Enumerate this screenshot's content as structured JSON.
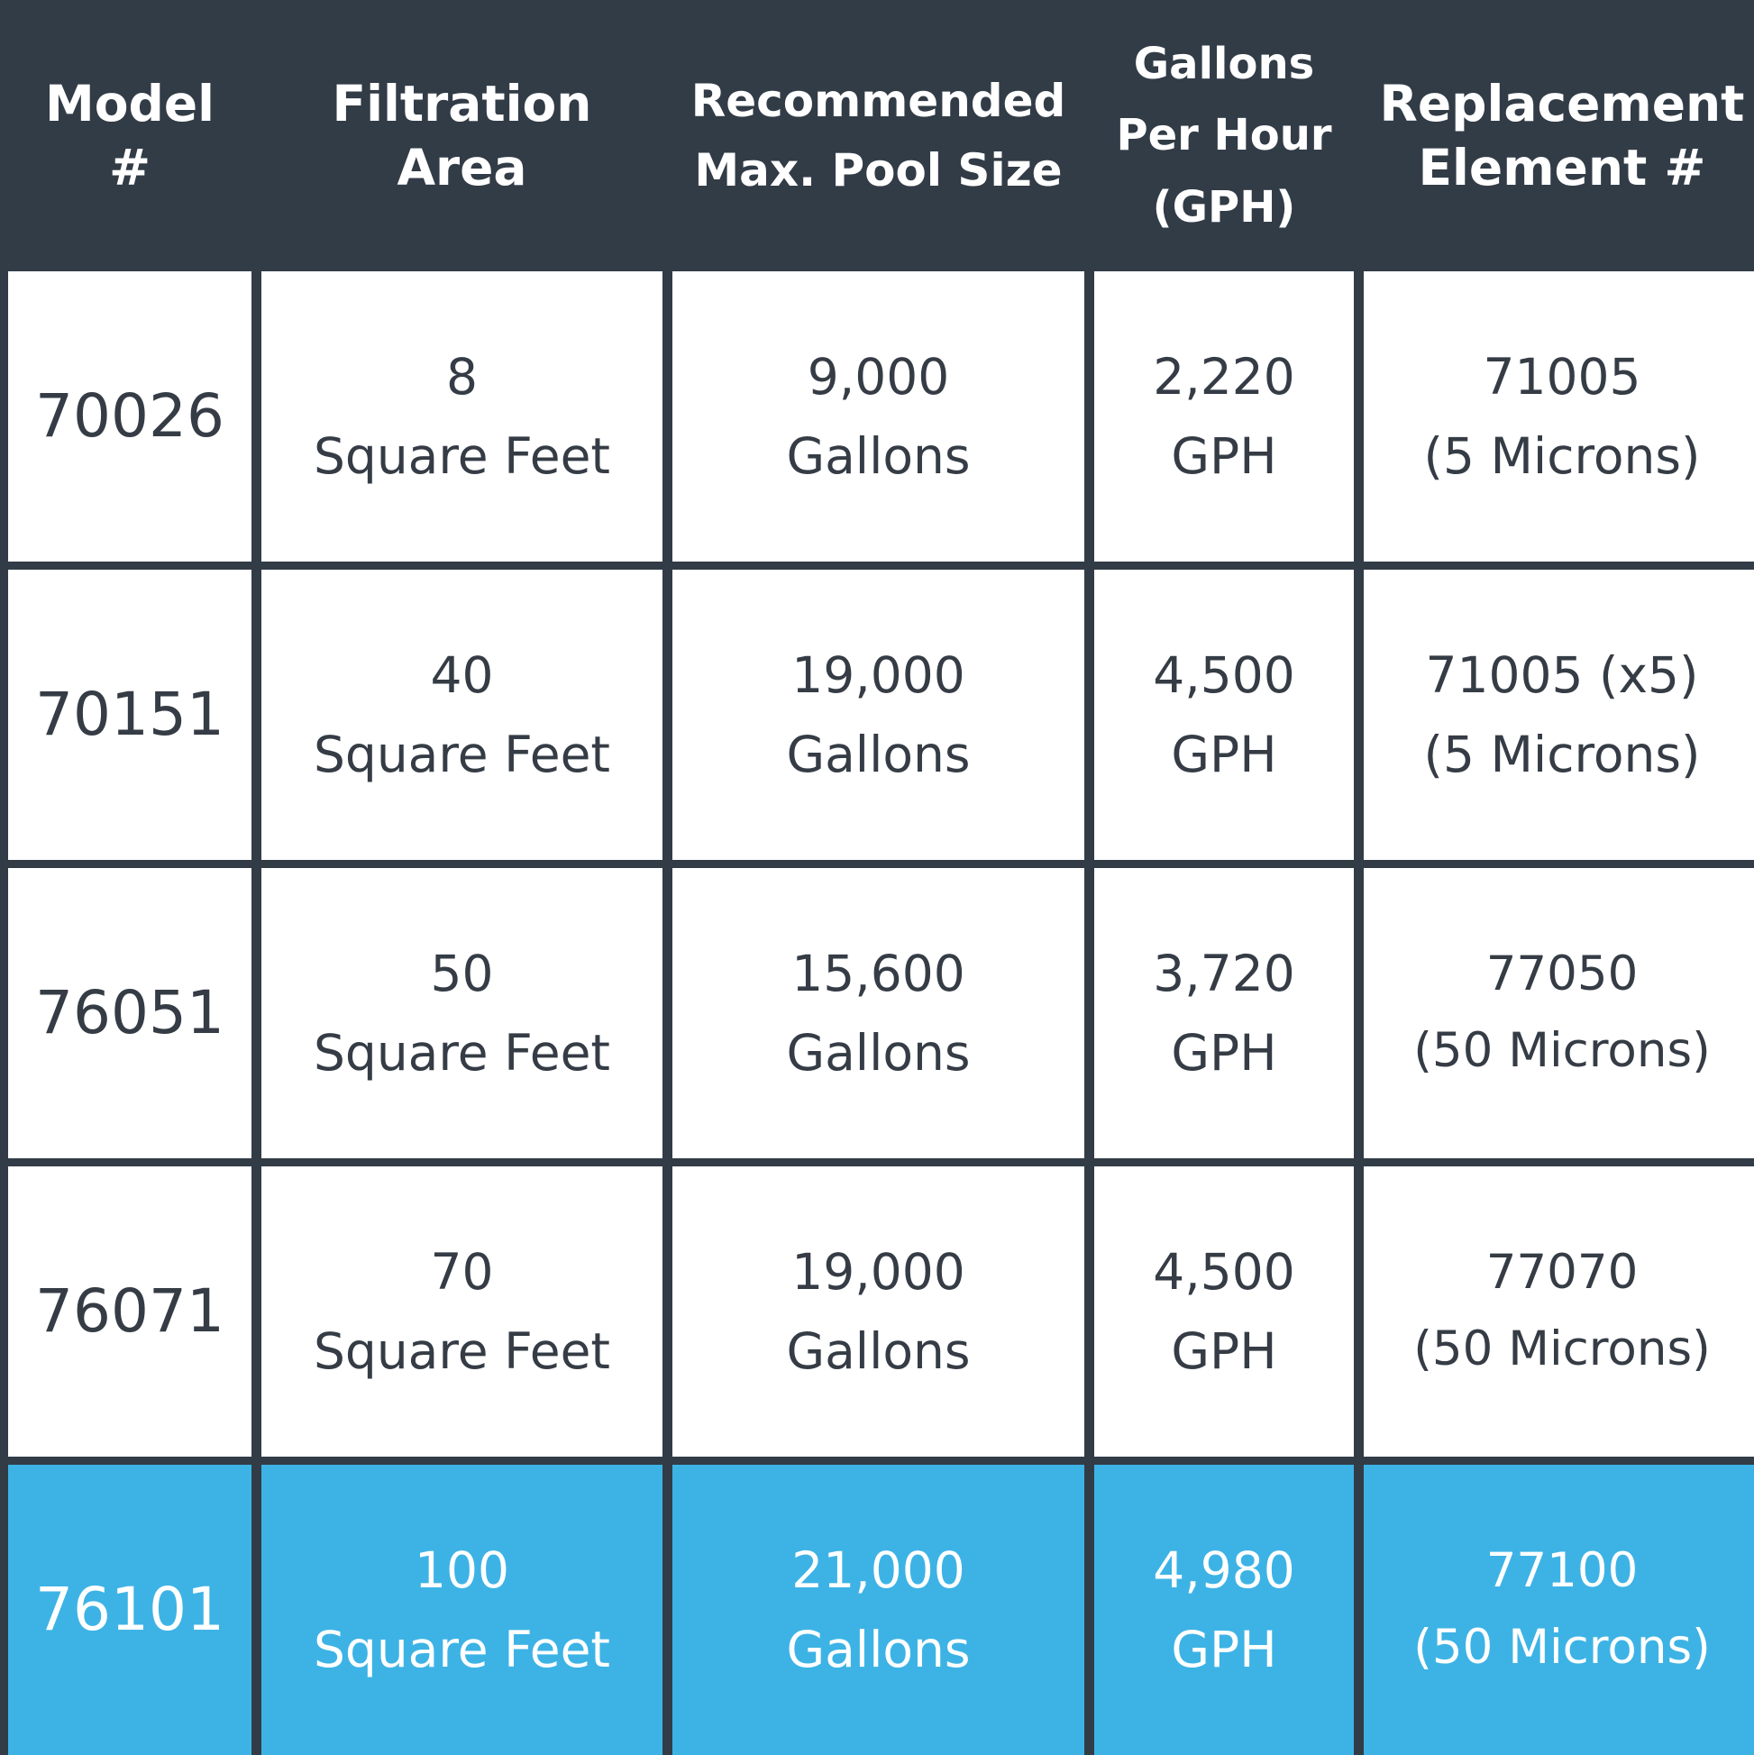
{
  "colors": {
    "header_bg": "#323c47",
    "cell_bg": "#ffffff",
    "highlight_bg": "#3db3e5",
    "text": "#353c45"
  },
  "table": {
    "headers": [
      "Model\n#",
      "Filtration\nArea",
      "Recommended\nMax. Pool Size",
      "Gallons\nPer Hour\n(GPH)",
      "Replacement\nElement #"
    ],
    "rows": [
      {
        "model": "70026",
        "area": "8\nSquare Feet",
        "pool": "9,000\nGallons",
        "gph": "2,220\nGPH",
        "element": "71005\n(5 Microns)",
        "highlighted": false
      },
      {
        "model": "70151",
        "area": "40\nSquare Feet",
        "pool": "19,000\nGallons",
        "gph": "4,500\nGPH",
        "element": "71005 (x5)\n(5 Microns)",
        "highlighted": false
      },
      {
        "model": "76051",
        "area": "50\nSquare Feet",
        "pool": "15,600\nGallons",
        "gph": "3,720\nGPH",
        "element": "77050\n(50 Microns)",
        "highlighted": false
      },
      {
        "model": "76071",
        "area": "70\nSquare Feet",
        "pool": "19,000\nGallons",
        "gph": "4,500\nGPH",
        "element": "77070\n(50 Microns)",
        "highlighted": false
      },
      {
        "model": "76101",
        "area": "100\nSquare Feet",
        "pool": "21,000\nGallons",
        "gph": "4,980\nGPH",
        "element": "77100\n(50 Microns)",
        "highlighted": true
      }
    ]
  }
}
